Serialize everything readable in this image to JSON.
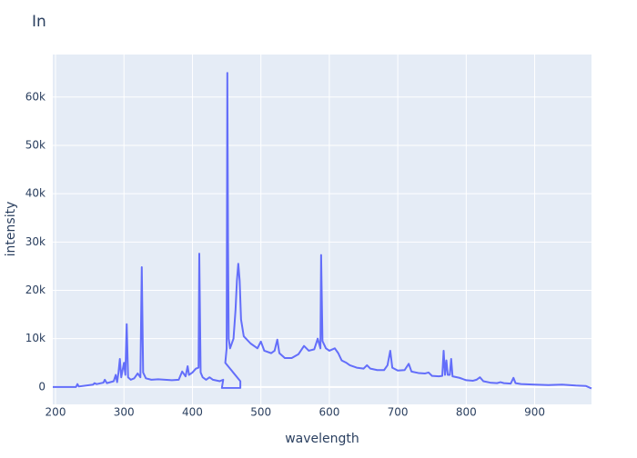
{
  "chart_data": {
    "type": "line",
    "title": "In",
    "x_label": "wavelength",
    "y_label": "intensity",
    "xlim": [
      196,
      983
    ],
    "ylim": [
      -3600,
      68800
    ],
    "xticks": [
      200,
      300,
      400,
      500,
      600,
      700,
      800,
      900
    ],
    "yticks": [
      0,
      {
        "value": 10000,
        "label": "10k"
      },
      {
        "value": 20000,
        "label": "20k"
      },
      {
        "value": 30000,
        "label": "30k"
      },
      {
        "value": 40000,
        "label": "40k"
      },
      {
        "value": 50000,
        "label": "50k"
      },
      {
        "value": 60000,
        "label": "60k"
      }
    ],
    "grid": true,
    "x": [
      196,
      230,
      232,
      234,
      255,
      257,
      260,
      270,
      272,
      275,
      285,
      288,
      290,
      292,
      294,
      296,
      298,
      300,
      302,
      304,
      306,
      310,
      315,
      320,
      324,
      326,
      328,
      332,
      340,
      350,
      360,
      370,
      380,
      385,
      390,
      393,
      395,
      400,
      405,
      409,
      410,
      412,
      415,
      420,
      425,
      430,
      440,
      445,
      443,
      470,
      470,
      448,
      450,
      451,
      452,
      453,
      455,
      460,
      463,
      465,
      467,
      469,
      471,
      475,
      485,
      495,
      500,
      505,
      515,
      520,
      524,
      527,
      535,
      545,
      555,
      563,
      570,
      578,
      583,
      587,
      588,
      590,
      595,
      600,
      608,
      613,
      618,
      625,
      630,
      640,
      650,
      655,
      660,
      670,
      680,
      685,
      689,
      692,
      700,
      710,
      716,
      720,
      730,
      740,
      745,
      750,
      760,
      765,
      767,
      769,
      771,
      773,
      776,
      778,
      780,
      790,
      800,
      810,
      815,
      820,
      825,
      835,
      845,
      850,
      855,
      865,
      869,
      872,
      880,
      900,
      920,
      940,
      960,
      975,
      983
    ],
    "series": [
      {
        "name": "In",
        "color": "#636efa",
        "values": [
          0,
          0,
          600,
          100,
          500,
          800,
          600,
          900,
          1500,
          800,
          1200,
          2500,
          1000,
          3000,
          5800,
          2000,
          3500,
          5000,
          2500,
          13000,
          2000,
          1500,
          1800,
          2800,
          2000,
          24800,
          3000,
          1800,
          1500,
          1600,
          1500,
          1400,
          1500,
          3200,
          2200,
          4300,
          2500,
          3000,
          3800,
          4000,
          27600,
          3000,
          2000,
          1500,
          2000,
          1500,
          1200,
          1500,
          -200,
          -200,
          1200,
          5000,
          8000,
          65000,
          30000,
          10000,
          8000,
          10000,
          16000,
          22000,
          25500,
          22000,
          14000,
          10500,
          9000,
          8000,
          9400,
          7500,
          7000,
          7500,
          9800,
          7000,
          6000,
          6000,
          6800,
          8500,
          7500,
          7800,
          10000,
          8000,
          27300,
          9500,
          8000,
          7500,
          8000,
          7000,
          5500,
          5000,
          4500,
          4000,
          3800,
          4500,
          3800,
          3500,
          3500,
          4500,
          7500,
          4000,
          3400,
          3500,
          4800,
          3200,
          2900,
          2800,
          3000,
          2300,
          2200,
          2300,
          7500,
          2500,
          5500,
          2500,
          2500,
          5800,
          2200,
          1900,
          1400,
          1300,
          1500,
          2000,
          1200,
          900,
          800,
          1000,
          800,
          700,
          1900,
          800,
          600,
          500,
          400,
          500,
          300,
          200,
          -300
        ]
      }
    ]
  }
}
